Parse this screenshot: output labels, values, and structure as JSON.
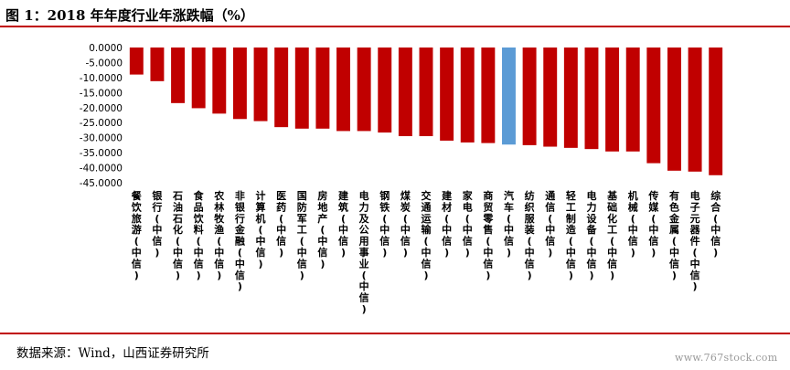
{
  "header": {
    "title": "图 1：2018 年年度行业年涨跌幅（%）"
  },
  "footer": {
    "source": "数据来源：Wind，山西证券研究所",
    "watermark": "www.767stock.com"
  },
  "colors": {
    "bar": "#c00000",
    "highlight": "#5b9bd5",
    "rule": "#c00000"
  },
  "chart_data": {
    "type": "bar",
    "title": "2018 年年度行业年涨跌幅（%）",
    "ylim": [
      -45,
      0
    ],
    "yticks": [
      "0.0000",
      "-5.0000",
      "-10.0000",
      "-15.0000",
      "-20.0000",
      "-25.0000",
      "-30.0000",
      "-35.0000",
      "-40.0000",
      "-45.0000"
    ],
    "highlight_category": "汽车(中信)",
    "categories": [
      "餐饮旅游(中信)",
      "银行(中信)",
      "石油石化(中信)",
      "食品饮料(中信)",
      "农林牧渔(中信)",
      "非银行金融(中信)",
      "计算机(中信)",
      "医药(中信)",
      "国防军工(中信)",
      "房地产(中信)",
      "建筑(中信)",
      "电力及公用事业(中信)",
      "钢铁(中信)",
      "煤炭(中信)",
      "交通运输(中信)",
      "建材(中信)",
      "家电(中信)",
      "商贸零售(中信)",
      "汽车(中信)",
      "纺织服装(中信)",
      "通信(中信)",
      "轻工制造(中信)",
      "电力设备(中信)",
      "基础化工(中信)",
      "机械(中信)",
      "传媒(中信)",
      "有色金属(中信)",
      "电子元器件(中信)",
      "综合(中信)"
    ],
    "values": [
      -9.0,
      -11.2,
      -18.5,
      -20.2,
      -22.0,
      -23.8,
      -24.5,
      -26.5,
      -27.0,
      -27.0,
      -27.8,
      -27.8,
      -28.3,
      -29.5,
      -29.5,
      -31.0,
      -31.6,
      -31.8,
      -32.3,
      -32.5,
      -33.0,
      -33.4,
      -33.8,
      -34.6,
      -34.6,
      -38.5,
      -41.0,
      -41.3,
      -42.5
    ]
  }
}
